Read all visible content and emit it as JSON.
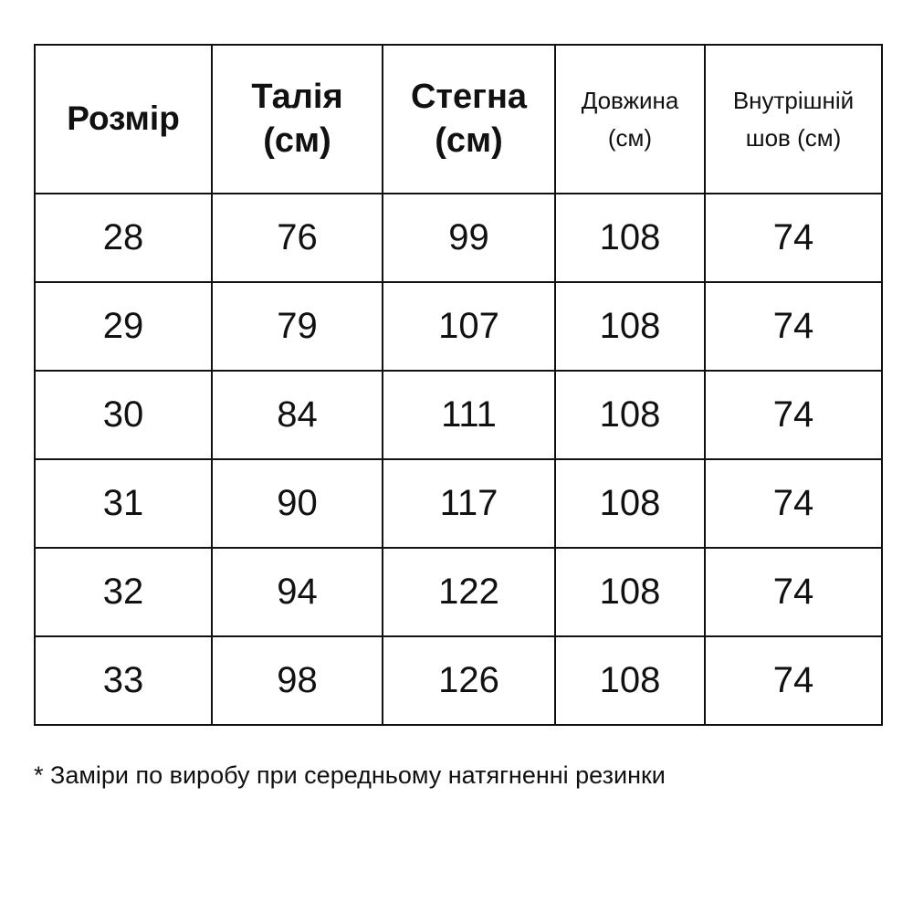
{
  "table": {
    "headers": [
      {
        "line1": "Розмір",
        "line2": ""
      },
      {
        "line1": "Талія",
        "line2": "(см)"
      },
      {
        "line1": "Стегна",
        "line2": "(см)"
      },
      {
        "line1": "Довжина",
        "line2": "(см)"
      },
      {
        "line1": "Внутрішній",
        "line2": "шов (см)"
      }
    ],
    "rows": [
      [
        "28",
        "76",
        "99",
        "108",
        "74"
      ],
      [
        "29",
        "79",
        "107",
        "108",
        "74"
      ],
      [
        "30",
        "84",
        "111",
        "108",
        "74"
      ],
      [
        "31",
        "90",
        "117",
        "108",
        "74"
      ],
      [
        "32",
        "94",
        "122",
        "108",
        "74"
      ],
      [
        "33",
        "98",
        "126",
        "108",
        "74"
      ]
    ]
  },
  "footnote": "* Заміри по виробу при середньому натягненні резинки"
}
